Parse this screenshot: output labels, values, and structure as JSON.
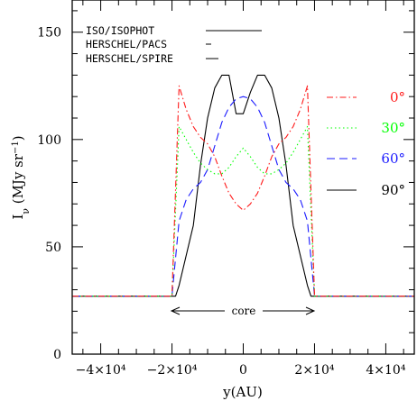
{
  "chart_data": {
    "type": "line",
    "title": "",
    "xlabel": "y(AU)",
    "ylabel": "Iν (MJy sr⁻¹)",
    "xlim": [
      -48000,
      48000
    ],
    "ylim": [
      0,
      165
    ],
    "x_ticks": [
      -40000,
      -20000,
      0,
      20000,
      40000
    ],
    "x_tick_labels": [
      "−4×10⁴",
      "−2×10⁴",
      "0",
      "2×10⁴",
      "4×10⁴"
    ],
    "y_ticks": [
      0,
      50,
      100,
      150
    ],
    "y_tick_labels": [
      "0",
      "50",
      "100",
      "150"
    ],
    "grid": false,
    "legend_instruments": [
      {
        "label": "ISO/ISOPHOT",
        "sample": "long"
      },
      {
        "label": "HERSCHEL/PACS",
        "sample": "short"
      },
      {
        "label": "HERSCHEL/SPIRE",
        "sample": "short"
      }
    ],
    "annotation": {
      "text": "core",
      "x_range": [
        -20000,
        20000
      ],
      "y": 20
    },
    "series": [
      {
        "name": "90°",
        "color": "#000000",
        "dash": "solid",
        "x": [
          -48000,
          -19000,
          -18000,
          -14000,
          -12000,
          -10000,
          -8000,
          -6000,
          -4000,
          -2000,
          0,
          2000,
          4000,
          6000,
          8000,
          10000,
          12000,
          14000,
          18000,
          19000,
          48000
        ],
        "y": [
          27,
          27,
          32,
          60,
          88,
          110,
          124,
          130,
          130,
          112,
          112,
          122,
          130,
          130,
          124,
          110,
          88,
          60,
          32,
          27,
          27
        ]
      },
      {
        "name": "60°",
        "color": "#1a1aff",
        "dash": "long",
        "x": [
          -48000,
          -20000,
          -18000,
          -16000,
          -14000,
          -12000,
          -10000,
          -8000,
          -6000,
          -4000,
          -2000,
          0,
          2000,
          4000,
          6000,
          8000,
          10000,
          12000,
          14000,
          16000,
          18000,
          20000,
          48000
        ],
        "y": [
          27,
          27,
          62,
          72,
          77,
          80,
          86,
          97,
          108,
          115,
          119,
          120,
          119,
          115,
          108,
          97,
          86,
          80,
          77,
          72,
          62,
          27,
          27
        ]
      },
      {
        "name": "30°",
        "color": "#00ff00",
        "dash": "dot",
        "x": [
          -48000,
          -20000,
          -18000,
          -16000,
          -14000,
          -12000,
          -10000,
          -8000,
          -6000,
          -4000,
          -2000,
          0,
          2000,
          4000,
          6000,
          8000,
          10000,
          12000,
          14000,
          16000,
          18000,
          20000,
          48000
        ],
        "y": [
          27,
          27,
          106,
          100,
          94,
          89,
          86,
          84,
          84,
          87,
          92,
          96,
          92,
          87,
          84,
          84,
          86,
          89,
          94,
          100,
          106,
          27,
          27
        ]
      },
      {
        "name": "0°",
        "color": "#ff1a1a",
        "dash": "dashdot",
        "x": [
          -48000,
          -20000,
          -18000,
          -16000,
          -14000,
          -12000,
          -10000,
          -8000,
          -6000,
          -4000,
          -2000,
          0,
          2000,
          4000,
          6000,
          8000,
          10000,
          12000,
          14000,
          16000,
          18000,
          20000,
          48000
        ],
        "y": [
          27,
          27,
          125,
          114,
          106,
          101,
          98,
          92,
          83,
          75,
          70,
          67,
          70,
          75,
          83,
          92,
          98,
          101,
          106,
          114,
          125,
          27,
          27
        ]
      }
    ]
  }
}
